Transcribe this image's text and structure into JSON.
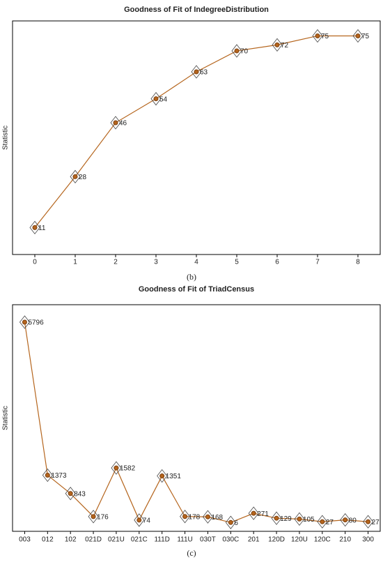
{
  "chart_data": [
    {
      "type": "line",
      "title": "Goodness of Fit of IndegreeDistribution",
      "y_label": "Statistic",
      "caption": "(b)",
      "categories": [
        "0",
        "1",
        "2",
        "3",
        "4",
        "5",
        "6",
        "7",
        "8"
      ],
      "values": [
        11,
        28,
        46,
        54,
        63,
        70,
        72,
        75,
        75
      ],
      "color": "#b5651d",
      "ylim": [
        2,
        80
      ]
    },
    {
      "type": "line",
      "title": "Goodness of Fit of TriadCensus",
      "y_label": "Statistic",
      "caption": "(c)",
      "categories": [
        "003",
        "012",
        "102",
        "021D",
        "021U",
        "021C",
        "111D",
        "111U",
        "030T",
        "030C",
        "201",
        "120D",
        "120U",
        "120C",
        "210",
        "300"
      ],
      "values": [
        5796,
        1373,
        843,
        176,
        1582,
        74,
        1351,
        178,
        168,
        6,
        271,
        129,
        105,
        27,
        80,
        27
      ],
      "color": "#b5651d",
      "ylim": [
        -250,
        6300
      ]
    }
  ]
}
